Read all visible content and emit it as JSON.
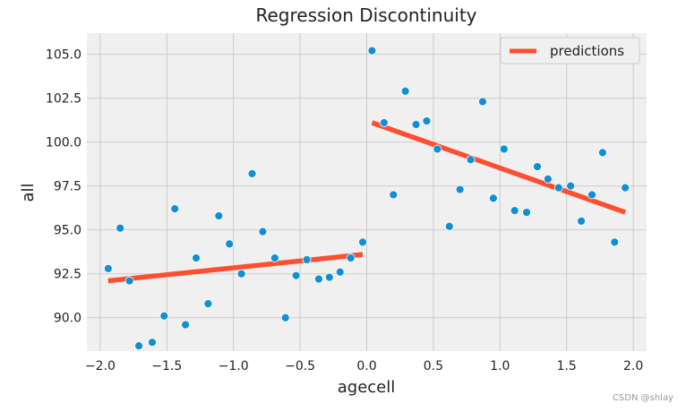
{
  "chart_data": {
    "type": "scatter",
    "title": "Regression Discontinuity",
    "xlabel": "agecell",
    "ylabel": "all",
    "xlim": [
      -2.1,
      2.1
    ],
    "ylim": [
      88.1,
      106.2
    ],
    "xticks": [
      -2.0,
      -1.5,
      -1.0,
      -0.5,
      0.0,
      0.5,
      1.0,
      1.5,
      2.0
    ],
    "yticks": [
      90.0,
      92.5,
      95.0,
      97.5,
      100.0,
      102.5,
      105.0
    ],
    "xtick_labels": [
      "−2.0",
      "−1.5",
      "−1.0",
      "−0.5",
      "0.0",
      "0.5",
      "1.0",
      "1.5",
      "2.0"
    ],
    "ytick_labels": [
      "90.0",
      "92.5",
      "95.0",
      "97.5",
      "100.0",
      "102.5",
      "105.0"
    ],
    "grid": true,
    "legend": {
      "position": "top-right",
      "entries": [
        "predictions"
      ]
    },
    "series": [
      {
        "name": "",
        "kind": "scatter",
        "color": "#0f8fd5",
        "x": [
          -1.94,
          -1.85,
          -1.78,
          -1.71,
          -1.61,
          -1.52,
          -1.44,
          -1.36,
          -1.28,
          -1.19,
          -1.11,
          -1.03,
          -0.94,
          -0.86,
          -0.78,
          -0.69,
          -0.61,
          -0.53,
          -0.45,
          -0.36,
          -0.28,
          -0.2,
          -0.12,
          -0.03,
          0.04,
          0.13,
          0.2,
          0.29,
          0.37,
          0.45,
          0.53,
          0.62,
          0.7,
          0.78,
          0.87,
          0.95,
          1.03,
          1.11,
          1.2,
          1.28,
          1.36,
          1.44,
          1.53,
          1.61,
          1.69,
          1.77,
          1.86,
          1.94
        ],
        "y": [
          92.8,
          95.1,
          92.1,
          88.4,
          88.6,
          90.1,
          96.2,
          89.6,
          93.4,
          90.8,
          95.8,
          94.2,
          92.5,
          98.2,
          94.9,
          93.4,
          90.0,
          92.4,
          93.3,
          92.2,
          92.3,
          92.6,
          93.4,
          94.3,
          105.2,
          101.1,
          97.0,
          102.9,
          101.0,
          101.2,
          99.6,
          95.2,
          97.3,
          99.0,
          102.3,
          96.8,
          99.6,
          96.1,
          96.0,
          98.6,
          97.9,
          97.4,
          97.5,
          95.5,
          97.0,
          99.4,
          94.3,
          97.4
        ]
      },
      {
        "name": "predictions",
        "kind": "line",
        "color": "#fc4f30",
        "segments": [
          {
            "x": [
              -1.94,
              -0.03
            ],
            "y": [
              92.1,
              93.6
            ]
          },
          {
            "x": [
              0.04,
              1.94
            ],
            "y": [
              101.1,
              96.0
            ]
          }
        ]
      }
    ]
  },
  "watermark": "CSDN @shlay"
}
